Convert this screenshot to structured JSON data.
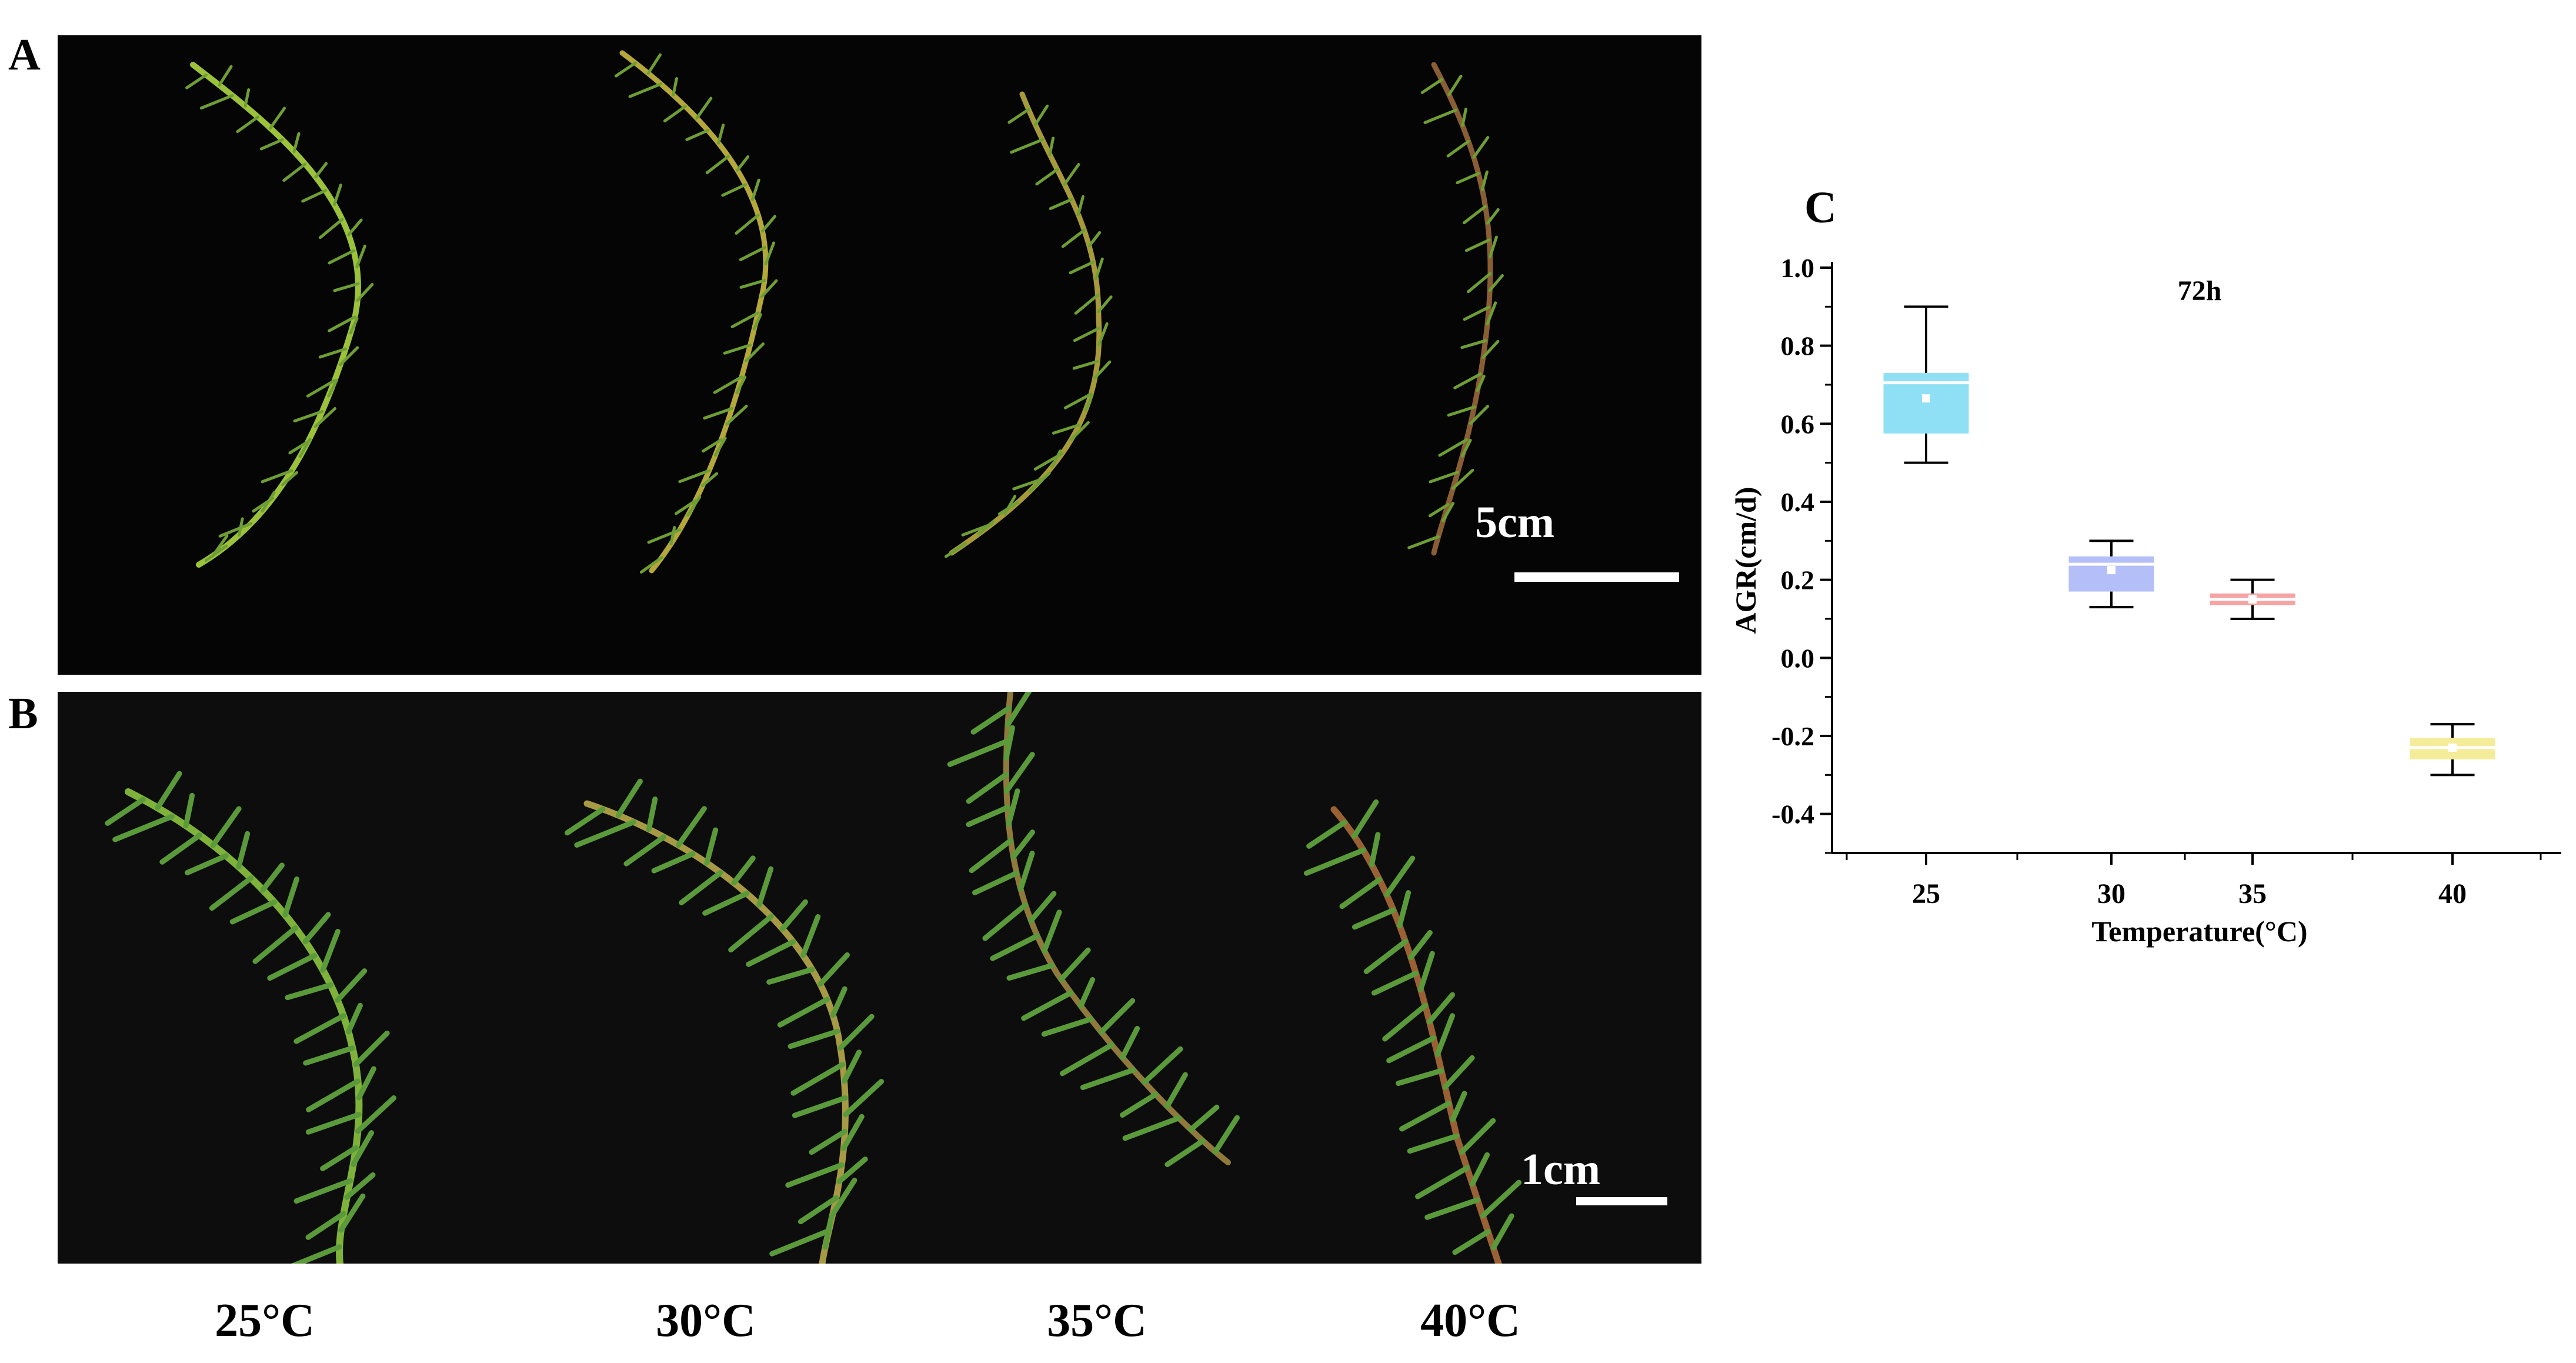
{
  "panels": {
    "a_letter": "A",
    "b_letter": "B",
    "c_letter": "C"
  },
  "scale_bars": {
    "a": "5cm",
    "b": "1cm"
  },
  "temperature_labels": [
    "25°C",
    "30°C",
    "35°C",
    "40°C"
  ],
  "colors": {
    "box_25": "#8fe0f5",
    "box_30": "#b4bff7",
    "box_35": "#f5a3a3",
    "box_40": "#f5ec9a",
    "stem_green": "#8fb52a",
    "stem_brown": "#9a6a3a",
    "leaf_green": "#4f9a3a"
  },
  "chart_data": {
    "type": "box",
    "title": "72h",
    "xlabel": "Temperature(°C)",
    "ylabel": "AGR(cm/d)",
    "categories": [
      "25",
      "30",
      "35",
      "40"
    ],
    "ylim": [
      -0.5,
      1.0
    ],
    "yticks": [
      "1.0",
      "0.8",
      "0.6",
      "0.4",
      "0.2",
      "0.0",
      "-0.2",
      "-0.4"
    ],
    "ytick_values": [
      1.0,
      0.8,
      0.6,
      0.4,
      0.2,
      0.0,
      -0.2,
      -0.4
    ],
    "boxes": [
      {
        "category": "25",
        "whisker_low": 0.5,
        "q1": 0.575,
        "median": 0.705,
        "q3": 0.73,
        "whisker_high": 0.9,
        "mean": 0.665,
        "color": "#8fe0f5"
      },
      {
        "category": "30",
        "whisker_low": 0.13,
        "q1": 0.17,
        "median": 0.24,
        "q3": 0.26,
        "whisker_high": 0.3,
        "mean": 0.225,
        "color": "#b4bff7"
      },
      {
        "category": "35",
        "whisker_low": 0.1,
        "q1": 0.135,
        "median": 0.15,
        "q3": 0.165,
        "whisker_high": 0.2,
        "mean": 0.15,
        "color": "#f5a3a3"
      },
      {
        "category": "40",
        "whisker_low": -0.3,
        "q1": -0.26,
        "median": -0.23,
        "q3": -0.205,
        "whisker_high": -0.17,
        "mean": -0.23,
        "color": "#f5ec9a"
      }
    ]
  }
}
